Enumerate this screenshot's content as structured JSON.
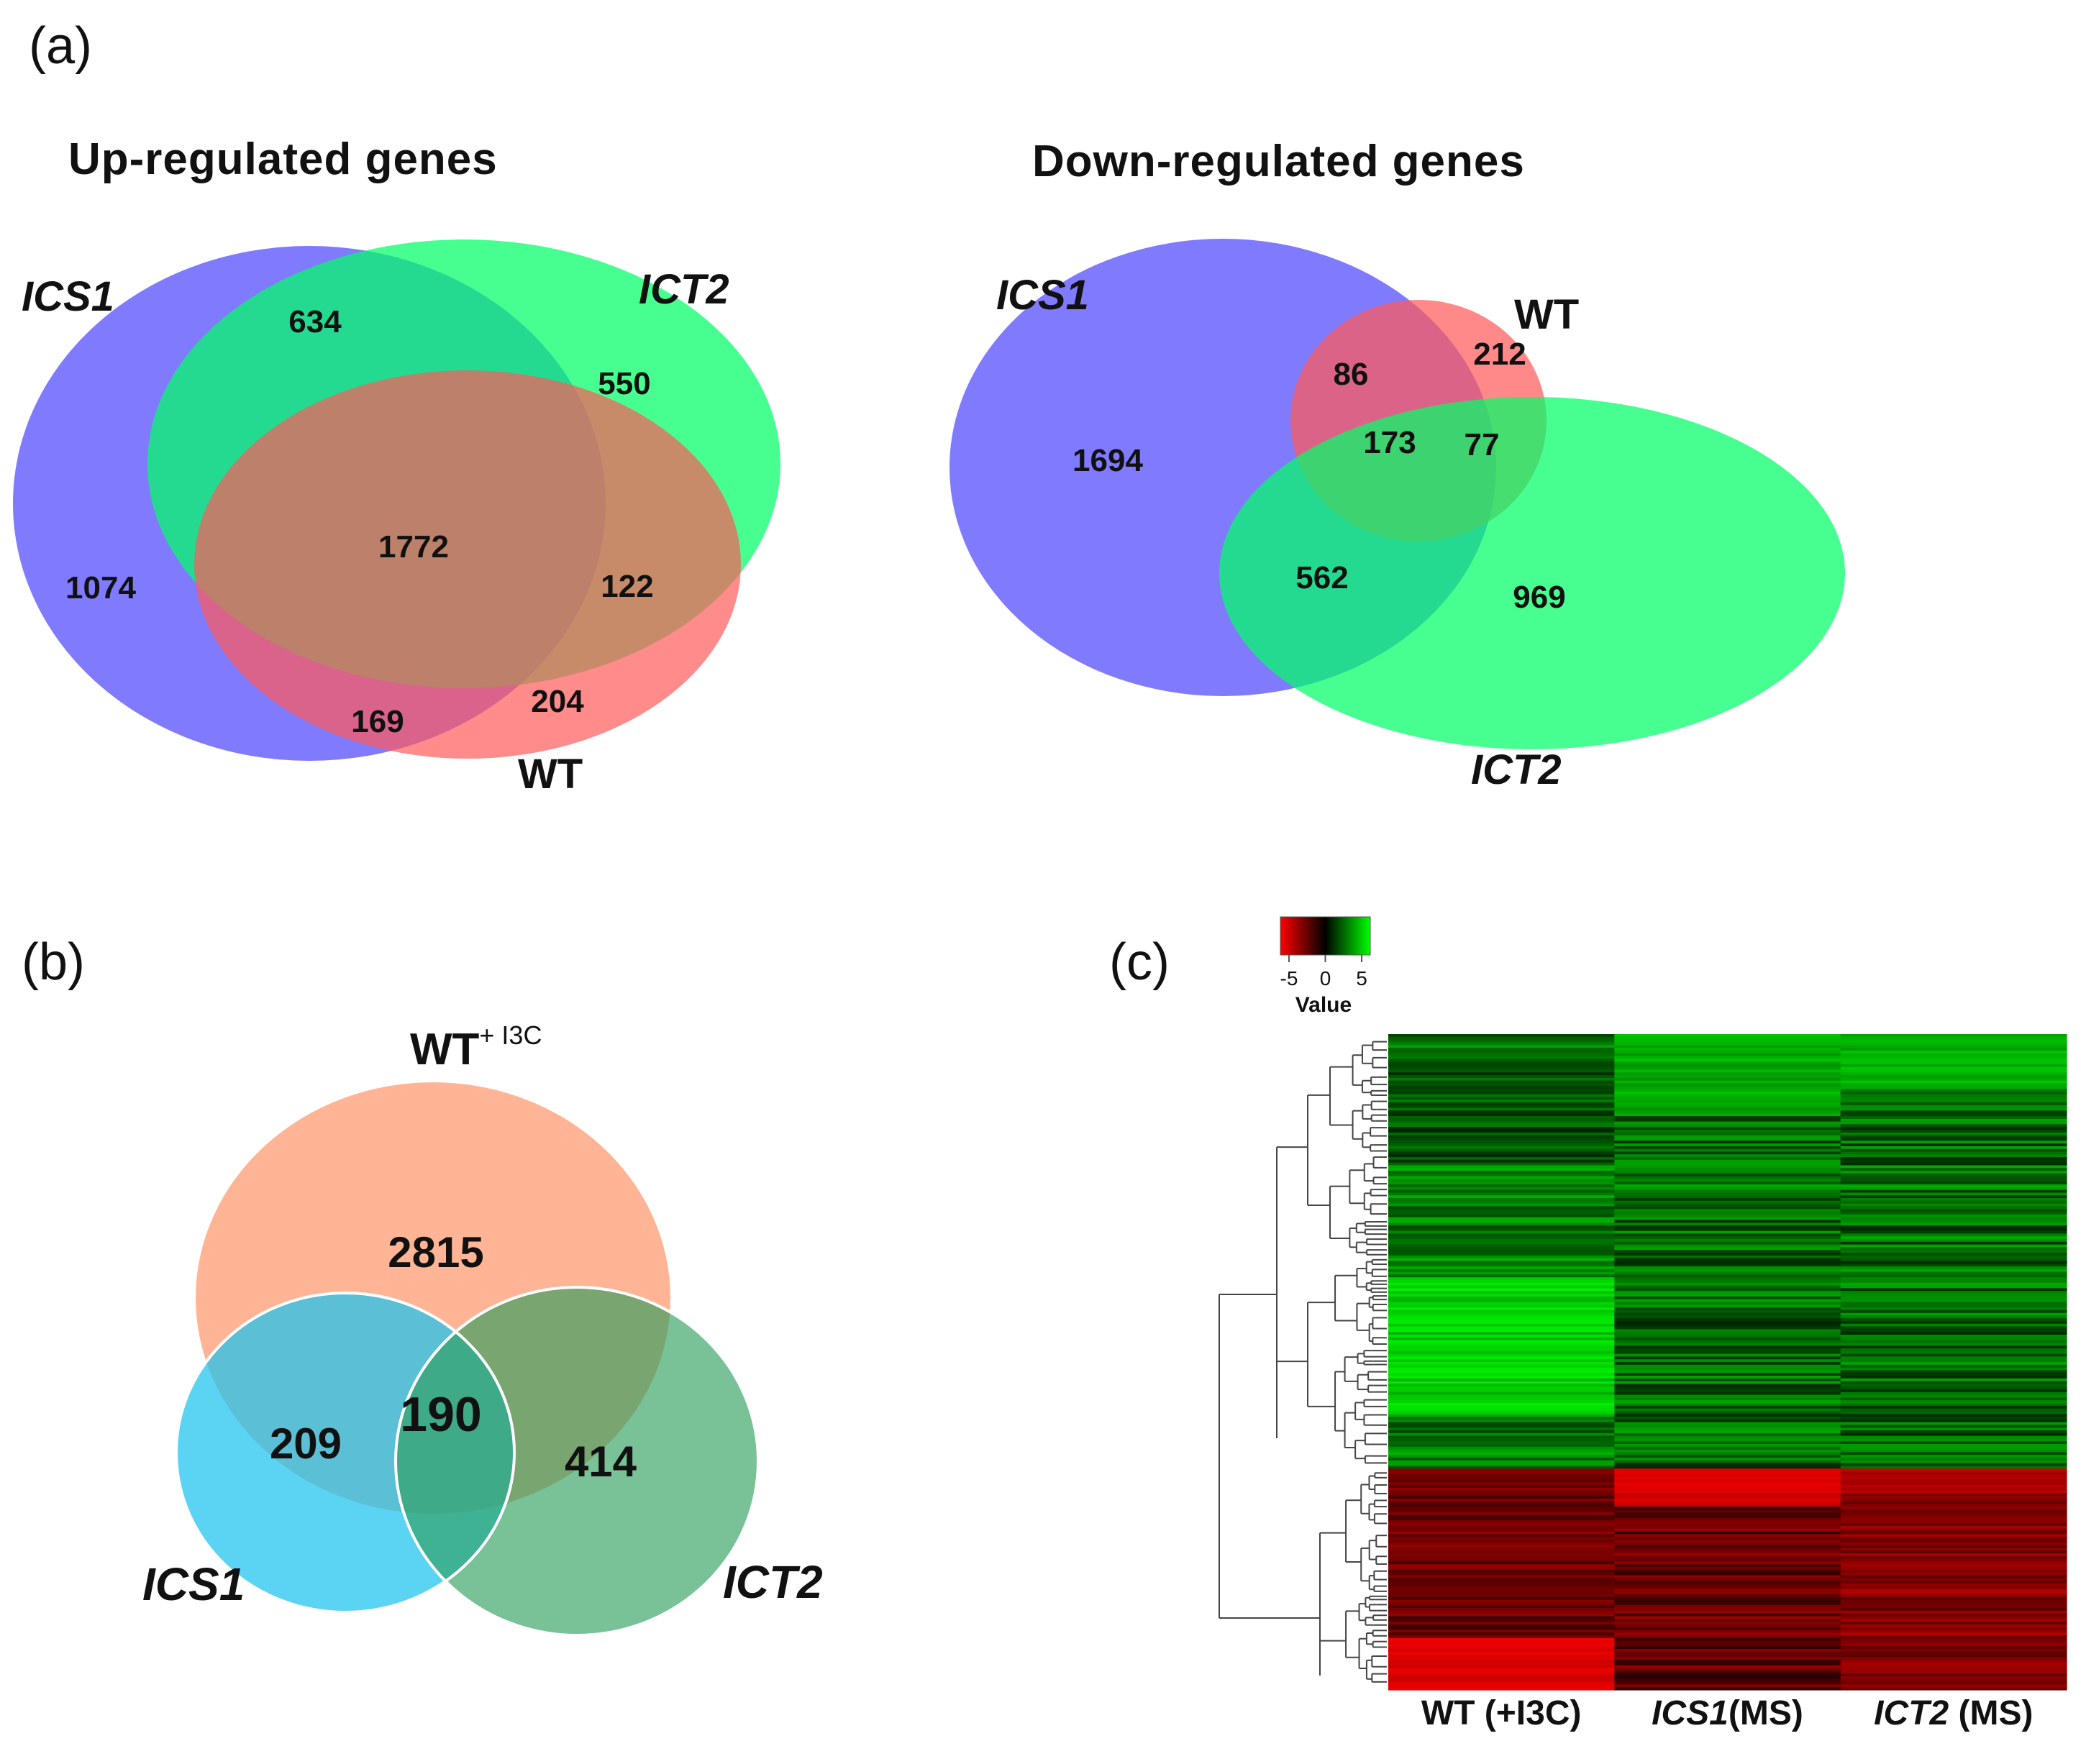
{
  "panel_a": {
    "label": "(a)",
    "up": {
      "title": "Up-regulated genes",
      "sets": {
        "ics1": "ICS1",
        "ict2": "ICT2",
        "wt": "WT"
      },
      "counts": {
        "ics1_only": "1074",
        "ics1_ict2": "634",
        "ict2_only": "550",
        "all": "1772",
        "ict2_wt": "122",
        "ics1_wt": "169",
        "wt_only": "204"
      }
    },
    "down": {
      "title": "Down-regulated genes",
      "sets": {
        "ics1": "ICS1",
        "wt": "WT",
        "ict2": "ICT2"
      },
      "counts": {
        "ics1_only": "1694",
        "ics1_wt": "86",
        "wt_only": "212",
        "all": "173",
        "wt_ict2": "77",
        "ics1_ict2": "562",
        "ict2_only": "969"
      }
    }
  },
  "panel_b": {
    "label": "(b)",
    "sets": {
      "wt_main": "WT",
      "wt_sup": "+ I3C",
      "ics1": "ICS1",
      "ict2": "ICT2"
    },
    "counts": {
      "wt_only": "2815",
      "ics1_wt": "209",
      "all": "190",
      "ict2_wt": "414"
    }
  },
  "panel_c": {
    "label": "(c)",
    "legend": {
      "title": "Value",
      "ticks": [
        "-5",
        "0",
        "5"
      ],
      "range": [
        -5,
        5
      ]
    },
    "colors": {
      "neg": "#ff0000",
      "mid": "#000000",
      "pos": "#00ff00"
    },
    "columns": [
      {
        "prefix": "WT (+I3C)",
        "suffix": ""
      },
      {
        "prefix": "ICS1",
        "suffix": "(MS)"
      },
      {
        "prefix": "ICT2",
        "suffix": " (MS)"
      }
    ]
  }
}
